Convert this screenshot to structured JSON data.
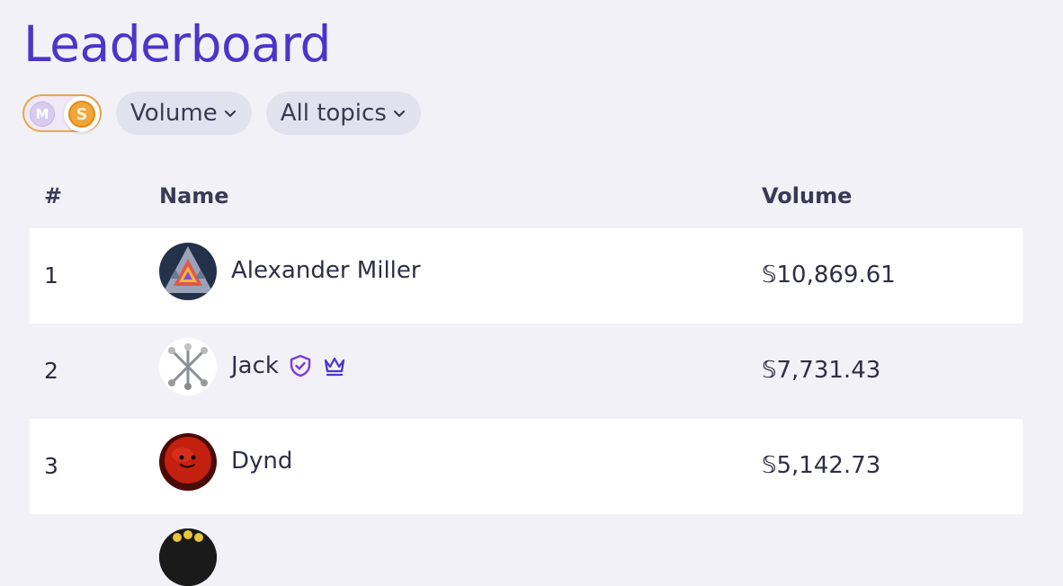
{
  "page": {
    "title": "Leaderboard"
  },
  "toolbar": {
    "currency_m": "M",
    "currency_s": "S",
    "sort_label": "Volume",
    "topic_label": "All topics"
  },
  "table": {
    "headers": {
      "rank": "#",
      "name": "Name",
      "value": "Volume"
    },
    "rows": [
      {
        "rank": "1",
        "name": "Alexander Miller",
        "amount": "𝕊10,869.61"
      },
      {
        "rank": "2",
        "name": "Jack",
        "amount": "𝕊7,731.43"
      },
      {
        "rank": "3",
        "name": "Dynd",
        "amount": "𝕊5,142.73"
      }
    ]
  },
  "colors": {
    "accent": "#4b35c9",
    "badge_purple": "#7d3fd4",
    "coin_gold": "#f2a53a"
  }
}
